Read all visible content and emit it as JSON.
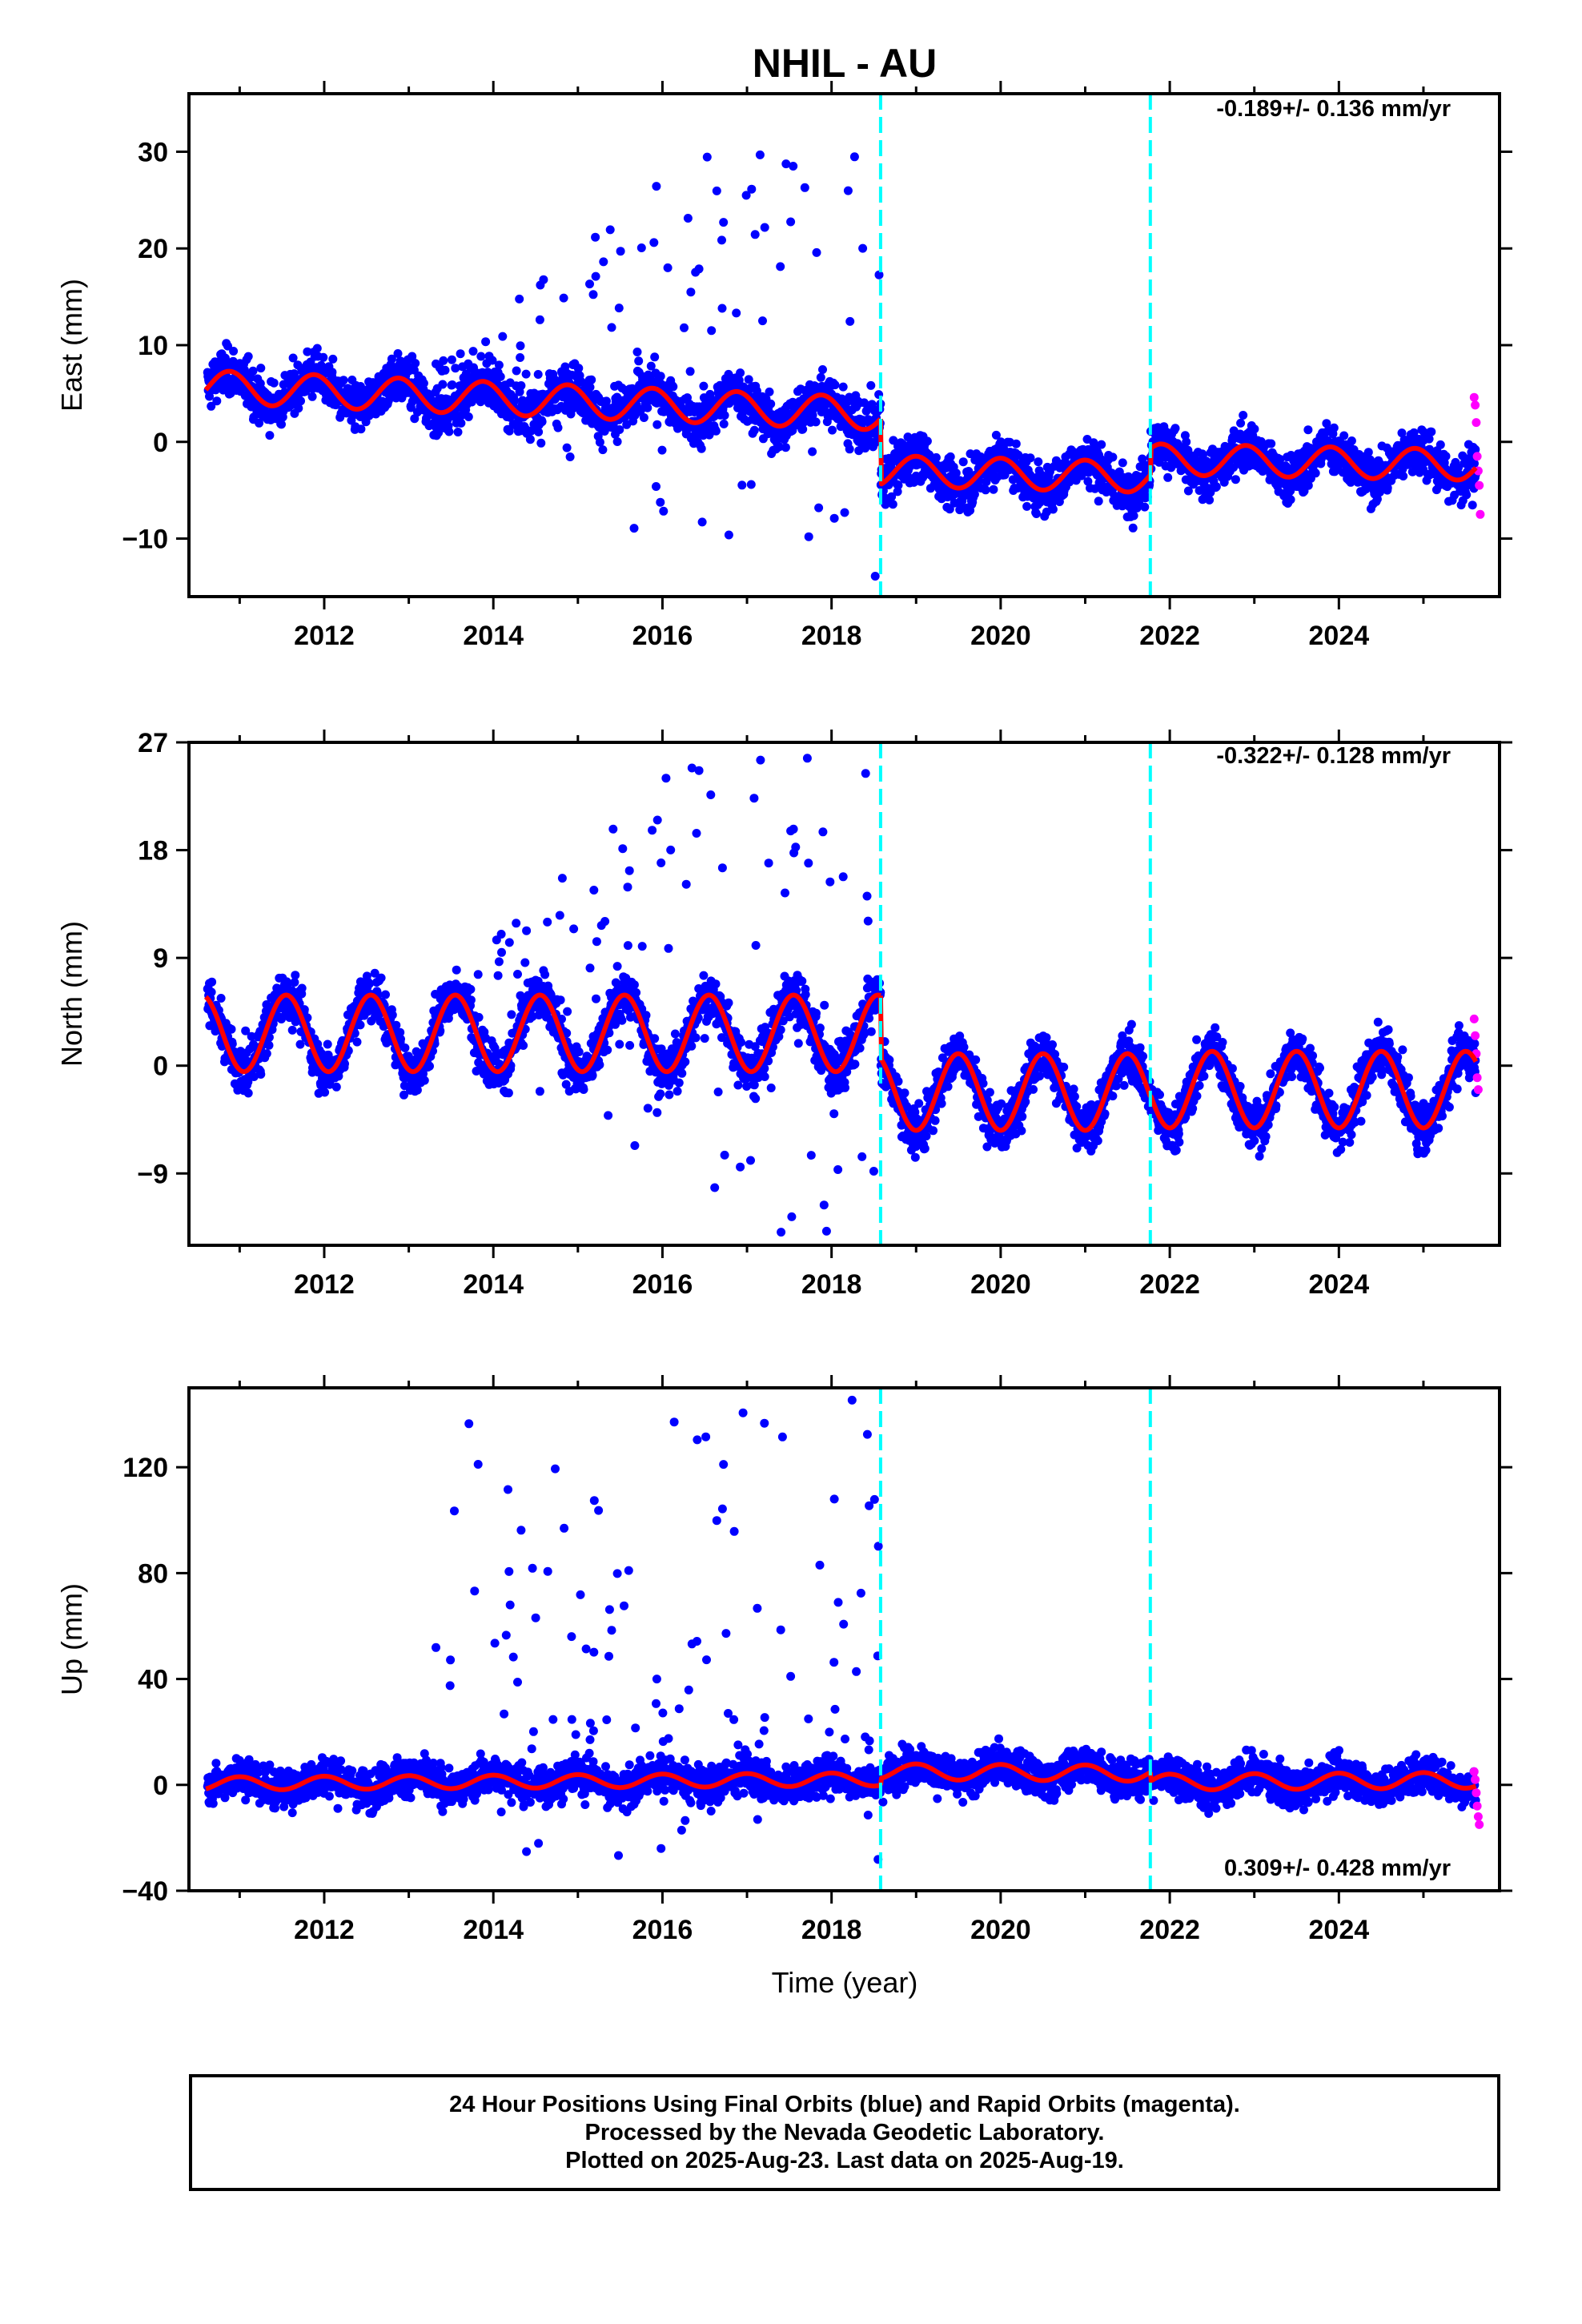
{
  "title": "NHIL - AU",
  "xlabel": "Time (year)",
  "caption": [
    "24 Hour Positions Using Final Orbits (blue) and Rapid Orbits (magenta).",
    "Processed by the Nevada Geodetic Laboratory.",
    "Plotted on 2025-Aug-23. Last data on 2025-Aug-19."
  ],
  "colors": {
    "final": "#0000ff",
    "rapid": "#ff00ff",
    "model": "#ff0000",
    "breaks": "#00ffff",
    "frame": "#000000"
  },
  "chart_data": [
    {
      "type": "scatter",
      "component": "East",
      "ylabel": "East (mm)",
      "rate": "-0.189+/- 0.136 mm/yr",
      "xlim": [
        2010.4,
        2025.9
      ],
      "ylim": [
        -16,
        36
      ],
      "xticks": [
        2012,
        2014,
        2016,
        2018,
        2020,
        2022,
        2024
      ],
      "yticks": [
        -10,
        0,
        10,
        20,
        30
      ],
      "breaks": [
        2018.58,
        2021.77
      ],
      "model": {
        "segments": [
          {
            "start": 2010.6,
            "end": 2018.58,
            "offset": 5.7,
            "trend": -0.35,
            "amp": 1.7,
            "phase": 2010.88
          },
          {
            "start": 2018.58,
            "end": 2021.77,
            "offset": -3.0,
            "trend": -0.2,
            "amp": 1.6,
            "phase": 2019.0
          },
          {
            "start": 2021.77,
            "end": 2025.62,
            "offset": -1.8,
            "trend": -0.15,
            "amp": 1.6,
            "phase": 2021.9
          }
        ]
      },
      "scatter": {
        "spread": 1.7,
        "outlier_rate": 0.1,
        "outlier_range": [
          -14,
          30
        ]
      },
      "rapid_values": [
        4.6,
        3.8,
        2.0,
        -1.5,
        -3.0,
        -4.5,
        -7.5
      ]
    },
    {
      "type": "scatter",
      "component": "North",
      "ylabel": "North (mm)",
      "rate": "-0.322+/- 0.128 mm/yr",
      "xlim": [
        2010.4,
        2025.9
      ],
      "ylim": [
        -15,
        27
      ],
      "xticks": [
        2012,
        2014,
        2016,
        2018,
        2020,
        2022,
        2024
      ],
      "yticks": [
        -9,
        0,
        9,
        18,
        27
      ],
      "breaks": [
        2018.58,
        2021.77
      ],
      "model": {
        "segments": [
          {
            "start": 2010.6,
            "end": 2018.58,
            "offset": 2.7,
            "trend": 0.0,
            "amp": 3.2,
            "phase": 2010.55
          },
          {
            "start": 2018.58,
            "end": 2021.77,
            "offset": -2.2,
            "trend": 0.0,
            "amp": 3.2,
            "phase": 2019.5
          },
          {
            "start": 2021.77,
            "end": 2025.62,
            "offset": -2.0,
            "trend": 0.0,
            "amp": 3.2,
            "phase": 2022.5
          }
        ]
      },
      "scatter": {
        "spread": 1.4,
        "outlier_rate": 0.1,
        "outlier_range": [
          -14,
          26
        ]
      },
      "rapid_values": [
        3.9,
        2.5,
        1.0,
        -1.0,
        -2.0
      ]
    },
    {
      "type": "scatter",
      "component": "Up",
      "ylabel": "Up (mm)",
      "rate": "0.309+/- 0.428 mm/yr",
      "xlim": [
        2010.4,
        2025.9
      ],
      "ylim": [
        -40,
        150
      ],
      "xticks": [
        2012,
        2014,
        2016,
        2018,
        2020,
        2022,
        2024
      ],
      "yticks": [
        -40,
        0,
        40,
        80,
        120
      ],
      "breaks": [
        2018.58,
        2021.77
      ],
      "model": {
        "segments": [
          {
            "start": 2010.6,
            "end": 2018.58,
            "offset": 0.5,
            "trend": 0.2,
            "amp": 2.5,
            "phase": 2011.0
          },
          {
            "start": 2018.58,
            "end": 2021.77,
            "offset": 5.0,
            "trend": -0.2,
            "amp": 3.0,
            "phase": 2019.0
          },
          {
            "start": 2021.77,
            "end": 2025.62,
            "offset": 1.0,
            "trend": 0.2,
            "amp": 3.0,
            "phase": 2022.0
          }
        ]
      },
      "scatter": {
        "spread": 5.0,
        "outlier_rate": 0.12,
        "outlier_range": [
          -37,
          148
        ]
      },
      "rapid_values": [
        5.0,
        2.0,
        -3.0,
        -8.0,
        -12.0,
        -15.0
      ]
    }
  ]
}
